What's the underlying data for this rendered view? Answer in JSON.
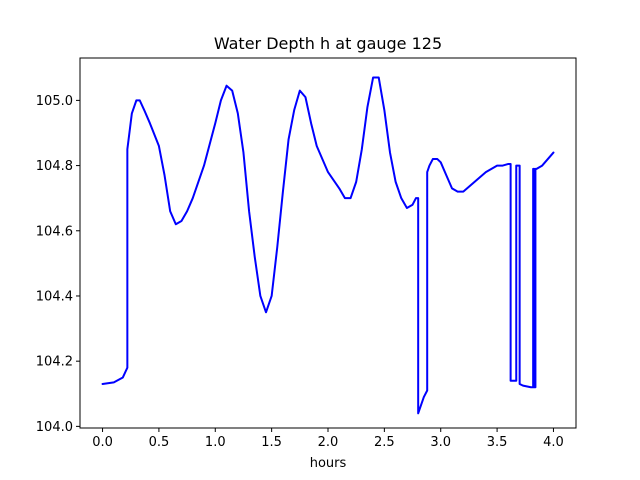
{
  "chart_data": {
    "type": "line",
    "title": "Water Depth h at gauge 125",
    "xlabel": "hours",
    "ylabel": "",
    "xlim": [
      -0.2,
      4.2
    ],
    "ylim": [
      103.995,
      105.13
    ],
    "xticks": [
      0.0,
      0.5,
      1.0,
      1.5,
      2.0,
      2.5,
      3.0,
      3.5,
      4.0
    ],
    "xtick_labels": [
      "0.0",
      "0.5",
      "1.0",
      "1.5",
      "2.0",
      "2.5",
      "3.0",
      "3.5",
      "4.0"
    ],
    "yticks": [
      104.0,
      104.2,
      104.4,
      104.6,
      104.8,
      105.0
    ],
    "ytick_labels": [
      "104.0",
      "104.2",
      "104.4",
      "104.6",
      "104.8",
      "105.0"
    ],
    "grid": false,
    "series": [
      {
        "color": "#0000ff",
        "x": [
          0.0,
          0.1,
          0.18,
          0.22,
          0.22,
          0.26,
          0.3,
          0.33,
          0.37,
          0.42,
          0.5,
          0.55,
          0.6,
          0.65,
          0.7,
          0.75,
          0.8,
          0.9,
          1.0,
          1.05,
          1.1,
          1.15,
          1.2,
          1.25,
          1.3,
          1.35,
          1.4,
          1.45,
          1.5,
          1.55,
          1.6,
          1.65,
          1.7,
          1.75,
          1.8,
          1.85,
          1.9,
          2.0,
          2.1,
          2.15,
          2.2,
          2.25,
          2.3,
          2.35,
          2.4,
          2.45,
          2.5,
          2.55,
          2.6,
          2.65,
          2.7,
          2.75,
          2.78,
          2.8,
          2.8,
          2.85,
          2.88,
          2.88,
          2.9,
          2.93,
          2.97,
          3.0,
          3.05,
          3.1,
          3.15,
          3.2,
          3.3,
          3.4,
          3.5,
          3.55,
          3.6,
          3.62,
          3.62,
          3.67,
          3.67,
          3.7,
          3.7,
          3.73,
          3.8,
          3.82,
          3.82,
          3.83,
          3.83,
          3.84,
          3.84,
          3.85,
          3.85,
          3.9,
          4.0
        ],
        "y": [
          104.13,
          104.135,
          104.15,
          104.18,
          104.85,
          104.96,
          105.0,
          105.0,
          104.97,
          104.93,
          104.86,
          104.77,
          104.66,
          104.62,
          104.63,
          104.66,
          104.7,
          104.8,
          104.93,
          105.0,
          105.045,
          105.03,
          104.96,
          104.84,
          104.66,
          104.52,
          104.4,
          104.35,
          104.4,
          104.55,
          104.72,
          104.88,
          104.97,
          105.03,
          105.01,
          104.93,
          104.86,
          104.78,
          104.73,
          104.7,
          104.7,
          104.75,
          104.85,
          104.98,
          105.07,
          105.07,
          104.97,
          104.84,
          104.75,
          104.7,
          104.67,
          104.68,
          104.7,
          104.7,
          104.04,
          104.09,
          104.11,
          104.78,
          104.8,
          104.82,
          104.82,
          104.81,
          104.77,
          104.73,
          104.72,
          104.72,
          104.75,
          104.78,
          104.8,
          104.8,
          104.805,
          104.805,
          104.14,
          104.14,
          104.8,
          104.8,
          104.13,
          104.125,
          104.12,
          104.12,
          104.79,
          104.79,
          104.12,
          104.12,
          104.79,
          104.79,
          104.79,
          104.8,
          104.84
        ]
      }
    ]
  }
}
